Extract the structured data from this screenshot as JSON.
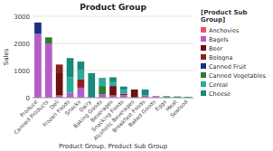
{
  "chart_data": {
    "type": "bar",
    "stacked": true,
    "title": "Product Group",
    "xlabel": "Product Group, Product Sub Group",
    "ylabel": "Sales",
    "legend_title": "[Product Sub\nGroup]",
    "categories": [
      "Produce",
      "Canned Products",
      "Deli",
      "Frozen Foods",
      "Snacks",
      "Dairy",
      "Baking Goods",
      "Beverages",
      "Snacking Foods",
      "Alcoholic Beverages",
      "Breakfast Foods",
      "Baked Goods",
      "Eggs",
      "Meat",
      "Seafood"
    ],
    "series": [
      {
        "name": "Anchovies",
        "color": "#e8536a",
        "values": [
          0,
          0,
          0,
          0,
          0,
          0,
          0,
          0,
          0,
          0,
          0,
          0,
          0,
          0,
          0
        ]
      },
      {
        "name": "Bagels",
        "color": "#b45cc9",
        "values": [
          2350,
          2000,
          80,
          180,
          370,
          0,
          130,
          80,
          100,
          0,
          80,
          60,
          0,
          0,
          0
        ]
      },
      {
        "name": "Beer",
        "color": "#6e1010",
        "values": [
          0,
          0,
          820,
          0,
          0,
          0,
          0,
          350,
          0,
          300,
          0,
          0,
          0,
          0,
          0
        ]
      },
      {
        "name": "Bologna",
        "color": "#8b2020",
        "values": [
          0,
          0,
          320,
          0,
          300,
          0,
          0,
          0,
          50,
          0,
          0,
          0,
          0,
          0,
          0
        ]
      },
      {
        "name": "Canned Fruit",
        "color": "#1a2f80",
        "values": [
          420,
          0,
          0,
          0,
          0,
          0,
          0,
          0,
          0,
          0,
          0,
          0,
          0,
          0,
          0
        ]
      },
      {
        "name": "Canned Vegetables",
        "color": "#2d7a2d",
        "values": [
          0,
          220,
          0,
          0,
          0,
          0,
          300,
          0,
          0,
          0,
          0,
          0,
          0,
          0,
          0
        ]
      },
      {
        "name": "Cereal",
        "color": "#2aaa9a",
        "values": [
          0,
          0,
          0,
          580,
          340,
          0,
          300,
          120,
          130,
          0,
          0,
          0,
          0,
          0,
          0
        ]
      },
      {
        "name": "Cheese",
        "color": "#1a8a7a",
        "values": [
          0,
          0,
          0,
          700,
          320,
          900,
          0,
          200,
          130,
          0,
          220,
          0,
          55,
          45,
          35
        ]
      }
    ],
    "ylim": [
      0,
      3000
    ],
    "yticks": [
      0,
      1000,
      2000,
      3000
    ],
    "grid": true,
    "legend": "upper right"
  }
}
